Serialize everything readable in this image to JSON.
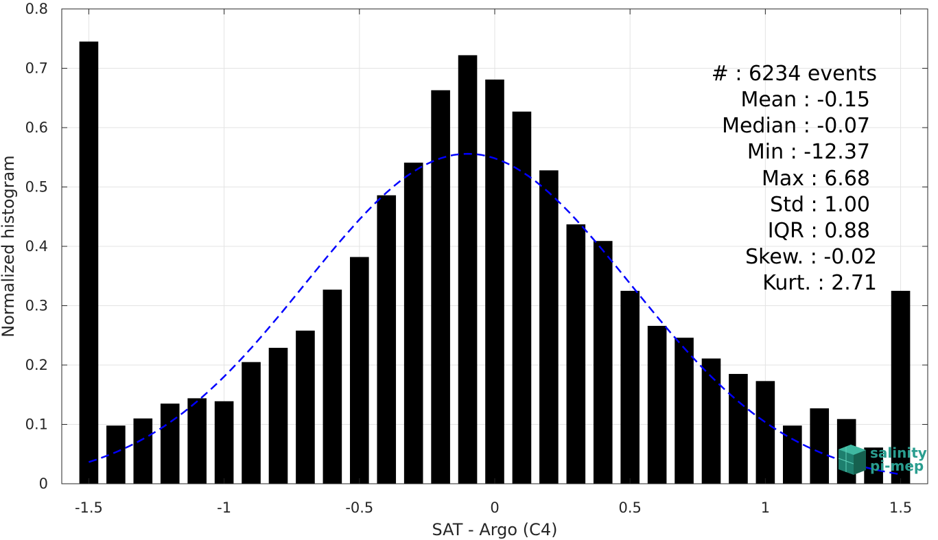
{
  "chart_data": {
    "type": "bar",
    "xlabel": "SAT - Argo (C4)",
    "ylabel": "Normalized histogram",
    "xlim": [
      -1.6,
      1.6
    ],
    "ylim": [
      0,
      0.8
    ],
    "grid": true,
    "bar_color": "#000000",
    "fit_color": "#0000ff",
    "x_ticks": [
      -1.5,
      -1,
      -0.5,
      0,
      0.5,
      1,
      1.5
    ],
    "x_tick_labels": [
      "-1.5",
      "-1",
      "-0.5",
      "0",
      "0.5",
      "1",
      "1.5"
    ],
    "y_ticks": [
      0,
      0.1,
      0.2,
      0.3,
      0.4,
      0.5,
      0.6,
      0.7,
      0.8
    ],
    "y_tick_labels": [
      "0",
      "0.1",
      "0.2",
      "0.3",
      "0.4",
      "0.5",
      "0.6",
      "0.7",
      "0.8"
    ],
    "series": [
      {
        "x": [
          -1.5,
          -1.4,
          -1.3,
          -1.2,
          -1.1,
          -1.0,
          -0.9,
          -0.8,
          -0.7,
          -0.6,
          -0.5,
          -0.4,
          -0.3,
          -0.2,
          -0.1,
          0.0,
          0.1,
          0.2,
          0.3,
          0.4,
          0.5,
          0.6,
          0.7,
          0.8,
          0.9,
          1.0,
          1.1,
          1.2,
          1.3,
          1.4,
          1.5
        ],
        "values": [
          0.745,
          0.098,
          0.11,
          0.135,
          0.144,
          0.139,
          0.205,
          0.229,
          0.258,
          0.327,
          0.382,
          0.486,
          0.541,
          0.663,
          0.722,
          0.681,
          0.627,
          0.528,
          0.437,
          0.409,
          0.325,
          0.266,
          0.246,
          0.211,
          0.185,
          0.173,
          0.098,
          0.127,
          0.109,
          0.061,
          0.325
        ]
      }
    ],
    "fit_curve": {
      "mean": -0.1,
      "std": 0.6,
      "x_range": [
        -1.5,
        1.5
      ]
    }
  },
  "stats": {
    "line1": "#  : 6234 events",
    "line2": "Mean : -0.15",
    "line3": "Median : -0.07",
    "line4": "Min : -12.37",
    "line5": "Max : 6.68",
    "line6": "Std : 1.00",
    "line7": "IQR : 0.88",
    "line8": "Skew. : -0.02",
    "line9": "Kurt. : 2.71"
  },
  "logo": {
    "line1": "salinity",
    "line2": "pi-mep",
    "color": "#2a9d8f"
  }
}
